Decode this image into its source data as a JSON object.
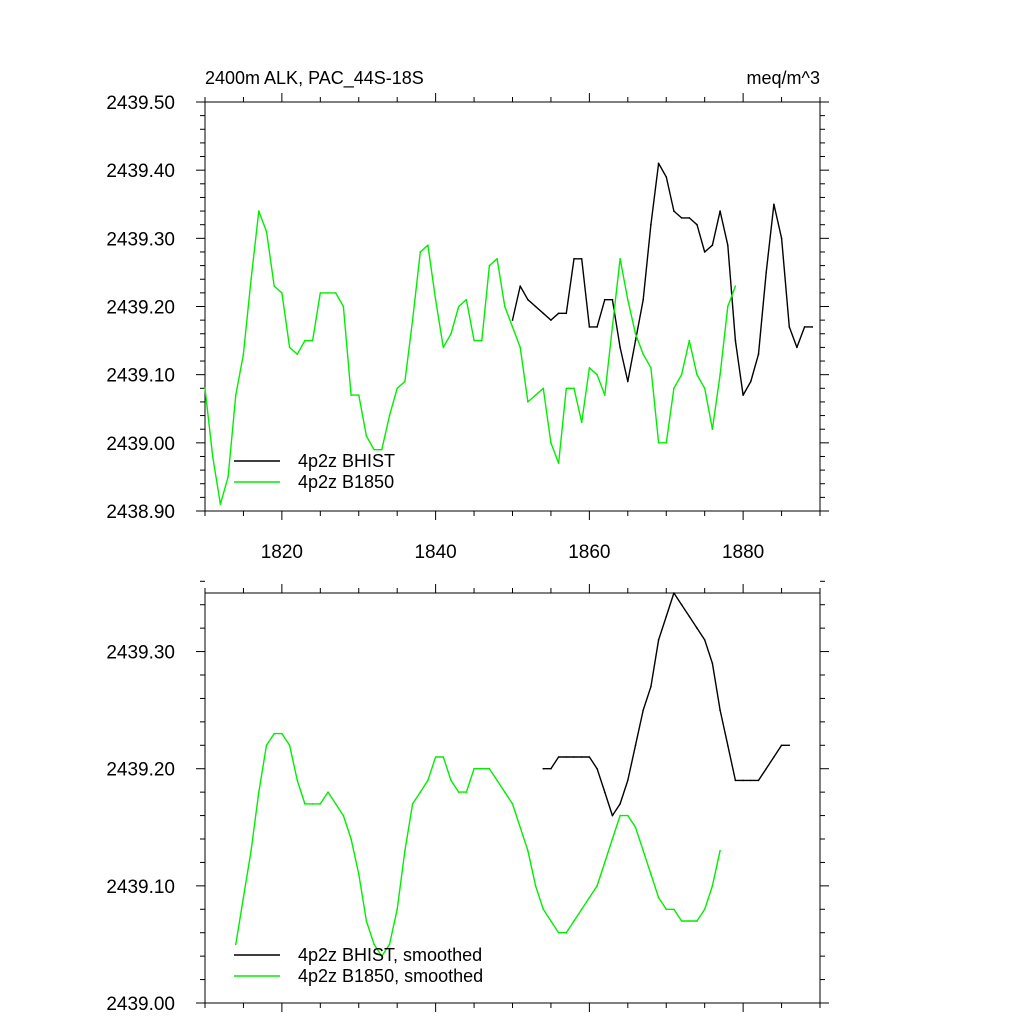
{
  "chart_data": [
    {
      "type": "line",
      "title_left": "2400m ALK, PAC_44S-18S",
      "title_right": "meq/m^3",
      "xlabel": "",
      "ylabel": "",
      "xlim": [
        1810,
        1890
      ],
      "ylim": [
        2438.9,
        2439.5
      ],
      "x_ticks": [
        "1820",
        "1840",
        "1860",
        "1880"
      ],
      "y_ticks": [
        "2438.90",
        "2439.00",
        "2439.10",
        "2439.20",
        "2439.30",
        "2439.40",
        "2439.50"
      ],
      "legend_position": "bottom-left",
      "grid": false,
      "series": [
        {
          "name": "4p2z BHIST",
          "color": "#000000",
          "x": [
            1850,
            1851,
            1852,
            1853,
            1854,
            1855,
            1856,
            1857,
            1858,
            1859,
            1860,
            1861,
            1862,
            1863,
            1864,
            1865,
            1866,
            1867,
            1868,
            1869,
            1870,
            1871,
            1872,
            1873,
            1874,
            1875,
            1876,
            1877,
            1878,
            1879,
            1880,
            1881,
            1882,
            1883,
            1884,
            1885,
            1886,
            1887,
            1888,
            1889
          ],
          "values": [
            2439.18,
            2439.23,
            2439.21,
            2439.2,
            2439.19,
            2439.18,
            2439.19,
            2439.19,
            2439.27,
            2439.27,
            2439.17,
            2439.17,
            2439.21,
            2439.21,
            2439.14,
            2439.09,
            2439.15,
            2439.21,
            2439.32,
            2439.41,
            2439.39,
            2439.34,
            2439.33,
            2439.33,
            2439.32,
            2439.28,
            2439.29,
            2439.34,
            2439.29,
            2439.15,
            2439.07,
            2439.09,
            2439.13,
            2439.25,
            2439.35,
            2439.3,
            2439.17,
            2439.14,
            2439.17,
            2439.17
          ]
        },
        {
          "name": "4p2z B1850",
          "color": "#00ee00",
          "x": [
            1810,
            1811,
            1812,
            1813,
            1814,
            1815,
            1816,
            1817,
            1818,
            1819,
            1820,
            1821,
            1822,
            1823,
            1824,
            1825,
            1826,
            1827,
            1828,
            1829,
            1830,
            1831,
            1832,
            1833,
            1834,
            1835,
            1836,
            1837,
            1838,
            1839,
            1840,
            1841,
            1842,
            1843,
            1844,
            1845,
            1846,
            1847,
            1848,
            1849,
            1850,
            1851,
            1852,
            1853,
            1854,
            1855,
            1856,
            1857,
            1858,
            1859,
            1860,
            1861,
            1862,
            1863,
            1864,
            1865,
            1866,
            1867,
            1868,
            1869,
            1870,
            1871,
            1872,
            1873,
            1874,
            1875,
            1876,
            1877,
            1878,
            1879
          ],
          "values": [
            2439.08,
            2438.98,
            2438.91,
            2438.95,
            2439.07,
            2439.13,
            2439.24,
            2439.34,
            2439.31,
            2439.23,
            2439.22,
            2439.14,
            2439.13,
            2439.15,
            2439.15,
            2439.22,
            2439.22,
            2439.22,
            2439.2,
            2439.07,
            2439.07,
            2439.01,
            2438.99,
            2438.99,
            2439.04,
            2439.08,
            2439.09,
            2439.18,
            2439.28,
            2439.29,
            2439.21,
            2439.14,
            2439.16,
            2439.2,
            2439.21,
            2439.15,
            2439.15,
            2439.26,
            2439.27,
            2439.2,
            2439.17,
            2439.14,
            2439.06,
            2439.07,
            2439.08,
            2439.0,
            2438.97,
            2439.08,
            2439.08,
            2439.03,
            2439.11,
            2439.1,
            2439.07,
            2439.17,
            2439.27,
            2439.21,
            2439.16,
            2439.13,
            2439.11,
            2439.0,
            2439.0,
            2439.08,
            2439.1,
            2439.15,
            2439.1,
            2439.08,
            2439.02,
            2439.1,
            2439.2,
            2439.23
          ]
        }
      ]
    },
    {
      "type": "line",
      "xlabel": "",
      "ylabel": "",
      "xlim": [
        1810,
        1890
      ],
      "ylim": [
        2439.0,
        2439.35
      ],
      "x_ticks": [
        "1820",
        "1840",
        "1860",
        "1880"
      ],
      "y_ticks": [
        "2439.00",
        "2439.10",
        "2439.20",
        "2439.30"
      ],
      "legend_position": "bottom-left",
      "grid": false,
      "series": [
        {
          "name": "4p2z BHIST, smoothed",
          "color": "#000000",
          "x": [
            1854,
            1855,
            1856,
            1857,
            1858,
            1859,
            1860,
            1861,
            1862,
            1863,
            1864,
            1865,
            1866,
            1867,
            1868,
            1869,
            1870,
            1871,
            1872,
            1873,
            1874,
            1875,
            1876,
            1877,
            1878,
            1879,
            1880,
            1881,
            1882,
            1883,
            1884,
            1885,
            1886
          ],
          "values": [
            2439.2,
            2439.2,
            2439.21,
            2439.21,
            2439.21,
            2439.21,
            2439.21,
            2439.2,
            2439.18,
            2439.16,
            2439.17,
            2439.19,
            2439.22,
            2439.25,
            2439.27,
            2439.31,
            2439.33,
            2439.35,
            2439.34,
            2439.33,
            2439.32,
            2439.31,
            2439.29,
            2439.25,
            2439.22,
            2439.19,
            2439.19,
            2439.19,
            2439.19,
            2439.2,
            2439.21,
            2439.22,
            2439.22
          ]
        },
        {
          "name": "4p2z B1850, smoothed",
          "color": "#00ee00",
          "x": [
            1814,
            1815,
            1816,
            1817,
            1818,
            1819,
            1820,
            1821,
            1822,
            1823,
            1824,
            1825,
            1826,
            1827,
            1828,
            1829,
            1830,
            1831,
            1832,
            1833,
            1834,
            1835,
            1836,
            1837,
            1838,
            1839,
            1840,
            1841,
            1842,
            1843,
            1844,
            1845,
            1846,
            1847,
            1848,
            1849,
            1850,
            1851,
            1852,
            1853,
            1854,
            1855,
            1856,
            1857,
            1858,
            1859,
            1860,
            1861,
            1862,
            1863,
            1864,
            1865,
            1866,
            1867,
            1868,
            1869,
            1870,
            1871,
            1872,
            1873,
            1874,
            1875,
            1876,
            1877
          ],
          "values": [
            2439.05,
            2439.09,
            2439.13,
            2439.18,
            2439.22,
            2439.23,
            2439.23,
            2439.22,
            2439.19,
            2439.17,
            2439.17,
            2439.17,
            2439.18,
            2439.17,
            2439.16,
            2439.14,
            2439.11,
            2439.07,
            2439.05,
            2439.04,
            2439.05,
            2439.08,
            2439.13,
            2439.17,
            2439.18,
            2439.19,
            2439.21,
            2439.21,
            2439.19,
            2439.18,
            2439.18,
            2439.2,
            2439.2,
            2439.2,
            2439.19,
            2439.18,
            2439.17,
            2439.15,
            2439.13,
            2439.1,
            2439.08,
            2439.07,
            2439.06,
            2439.06,
            2439.07,
            2439.08,
            2439.09,
            2439.1,
            2439.12,
            2439.14,
            2439.16,
            2439.16,
            2439.15,
            2439.13,
            2439.11,
            2439.09,
            2439.08,
            2439.08,
            2439.07,
            2439.07,
            2439.07,
            2439.08,
            2439.1,
            2439.13
          ]
        }
      ]
    }
  ]
}
